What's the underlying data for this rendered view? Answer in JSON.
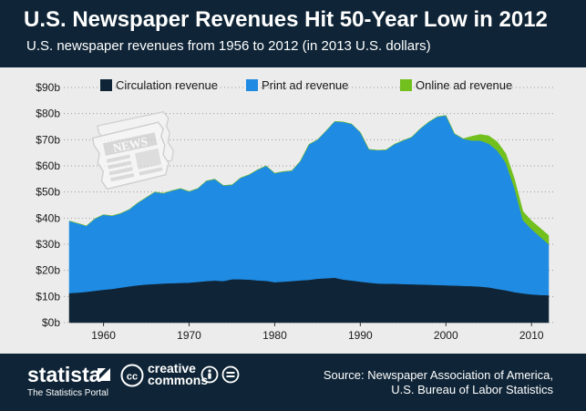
{
  "header": {
    "title": "U.S. Newspaper Revenues Hit 50-Year Low in 2012",
    "subtitle": "U.S. newspaper revenues from 1956 to 2012 (in 2013 U.S. dollars)"
  },
  "footer": {
    "brand": "statista",
    "tagline": "The Statistics Portal",
    "cc_line1": "creative",
    "cc_line2": "commons",
    "source_line1": "Source: Newspaper Association of America,",
    "source_line2": "U.S. Bureau of Labor Statistics"
  },
  "illustration": {
    "label": "NEWS"
  },
  "colors": {
    "header_bg": "#0f2537",
    "plot_bg": "#ececec",
    "circulation": "#0f2537",
    "print": "#1f8be3",
    "online": "#72c01e"
  },
  "chart_data": {
    "type": "area",
    "stacked": true,
    "title": "U.S. Newspaper Revenues Hit 50-Year Low in 2012",
    "subtitle": "U.S. newspaper revenues from 1956 to 2012 (in 2013 U.S. dollars)",
    "xlabel": "",
    "ylabel": "",
    "xlim": [
      1956,
      2012
    ],
    "ylim": [
      0,
      90
    ],
    "x_ticks": [
      1960,
      1970,
      1980,
      1990,
      2000,
      2010
    ],
    "y_ticks": [
      0,
      10,
      20,
      30,
      40,
      50,
      60,
      70,
      80,
      90
    ],
    "y_tick_labels": [
      "$0b",
      "$10b",
      "$20b",
      "$30b",
      "$40b",
      "$50b",
      "$60b",
      "$70b",
      "$80b",
      "$90b"
    ],
    "grid": "horizontal dotted",
    "legend_position": "top",
    "x": [
      1956,
      1957,
      1958,
      1959,
      1960,
      1961,
      1962,
      1963,
      1964,
      1965,
      1966,
      1967,
      1968,
      1969,
      1970,
      1971,
      1972,
      1973,
      1974,
      1975,
      1976,
      1977,
      1978,
      1979,
      1980,
      1981,
      1982,
      1983,
      1984,
      1985,
      1986,
      1987,
      1988,
      1989,
      1990,
      1991,
      1992,
      1993,
      1994,
      1995,
      1996,
      1997,
      1998,
      1999,
      2000,
      2001,
      2002,
      2003,
      2004,
      2005,
      2006,
      2007,
      2008,
      2009,
      2010,
      2011,
      2012
    ],
    "series": [
      {
        "name": "Circulation revenue",
        "color": "#0f2537",
        "values": [
          11.3,
          11.5,
          11.8,
          12.2,
          12.6,
          12.9,
          13.4,
          13.9,
          14.3,
          14.6,
          14.8,
          15.0,
          15.1,
          15.2,
          15.3,
          15.6,
          15.9,
          16.1,
          15.9,
          16.6,
          16.6,
          16.5,
          16.2,
          16.0,
          15.5,
          15.7,
          15.9,
          16.2,
          16.4,
          16.8,
          17.0,
          17.2,
          16.5,
          16.1,
          15.7,
          15.3,
          15.0,
          14.9,
          14.9,
          14.8,
          14.7,
          14.6,
          14.5,
          14.4,
          14.3,
          14.2,
          14.1,
          14.0,
          13.8,
          13.5,
          12.9,
          12.4,
          11.7,
          11.2,
          10.8,
          10.6,
          10.5
        ]
      },
      {
        "name": "Print ad revenue",
        "color": "#1f8be3",
        "values": [
          27.6,
          26.5,
          25.2,
          27.6,
          28.7,
          28.0,
          28.4,
          29.4,
          31.5,
          33.3,
          35.2,
          34.5,
          35.4,
          36.1,
          34.9,
          35.7,
          38.3,
          38.8,
          36.6,
          36.1,
          38.8,
          40.1,
          42.3,
          44.0,
          41.7,
          42.1,
          42.2,
          45.6,
          51.8,
          53.2,
          56.4,
          59.8,
          60.3,
          59.9,
          57.1,
          51.0,
          51.0,
          51.2,
          53.4,
          54.9,
          56.3,
          59.6,
          62.3,
          64.4,
          65.0,
          58.1,
          56.3,
          55.7,
          55.9,
          55.0,
          53.0,
          48.8,
          39.9,
          28.0,
          25.0,
          22.3,
          19.5
        ]
      },
      {
        "name": "Online ad revenue",
        "color": "#72c01e",
        "values": [
          0,
          0,
          0,
          0,
          0,
          0,
          0,
          0,
          0,
          0,
          0,
          0,
          0,
          0,
          0,
          0,
          0,
          0,
          0,
          0,
          0,
          0,
          0,
          0,
          0,
          0,
          0,
          0,
          0,
          0,
          0,
          0,
          0,
          0,
          0,
          0,
          0,
          0,
          0,
          0,
          0,
          0,
          0,
          0,
          0,
          0,
          0,
          1.6,
          2.3,
          3.0,
          3.3,
          3.5,
          3.5,
          3.4,
          3.2,
          3.3,
          3.4
        ]
      }
    ]
  }
}
